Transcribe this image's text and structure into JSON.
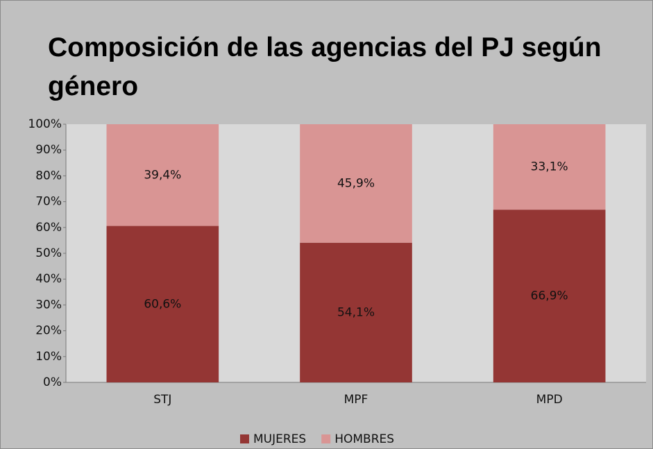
{
  "chart_data": {
    "type": "stacked_bar",
    "title": "Composición de las agencias del PJ según género",
    "categories": [
      "STJ",
      "MPF",
      "MPD"
    ],
    "series": [
      {
        "name": "MUJERES",
        "color": "#943634",
        "values": [
          60.6,
          54.1,
          66.9
        ],
        "value_labels": [
          "60,6%",
          "54,1%",
          "66,9%"
        ]
      },
      {
        "name": "HOMBRES",
        "color": "#d99594",
        "values": [
          39.4,
          45.9,
          33.1
        ],
        "value_labels": [
          "39,4%",
          "45,9%",
          "33,1%"
        ]
      }
    ],
    "ylim": [
      0,
      100
    ],
    "yticks": [
      {
        "value": 0,
        "label": "0%"
      },
      {
        "value": 10,
        "label": "10%"
      },
      {
        "value": 20,
        "label": "20%"
      },
      {
        "value": 30,
        "label": "30%"
      },
      {
        "value": 40,
        "label": "40%"
      },
      {
        "value": 50,
        "label": "50%"
      },
      {
        "value": 60,
        "label": "60%"
      },
      {
        "value": 70,
        "label": "70%"
      },
      {
        "value": 80,
        "label": "80%"
      },
      {
        "value": 90,
        "label": "90%"
      },
      {
        "value": 100,
        "label": "100%"
      }
    ],
    "legend": "bottom"
  }
}
